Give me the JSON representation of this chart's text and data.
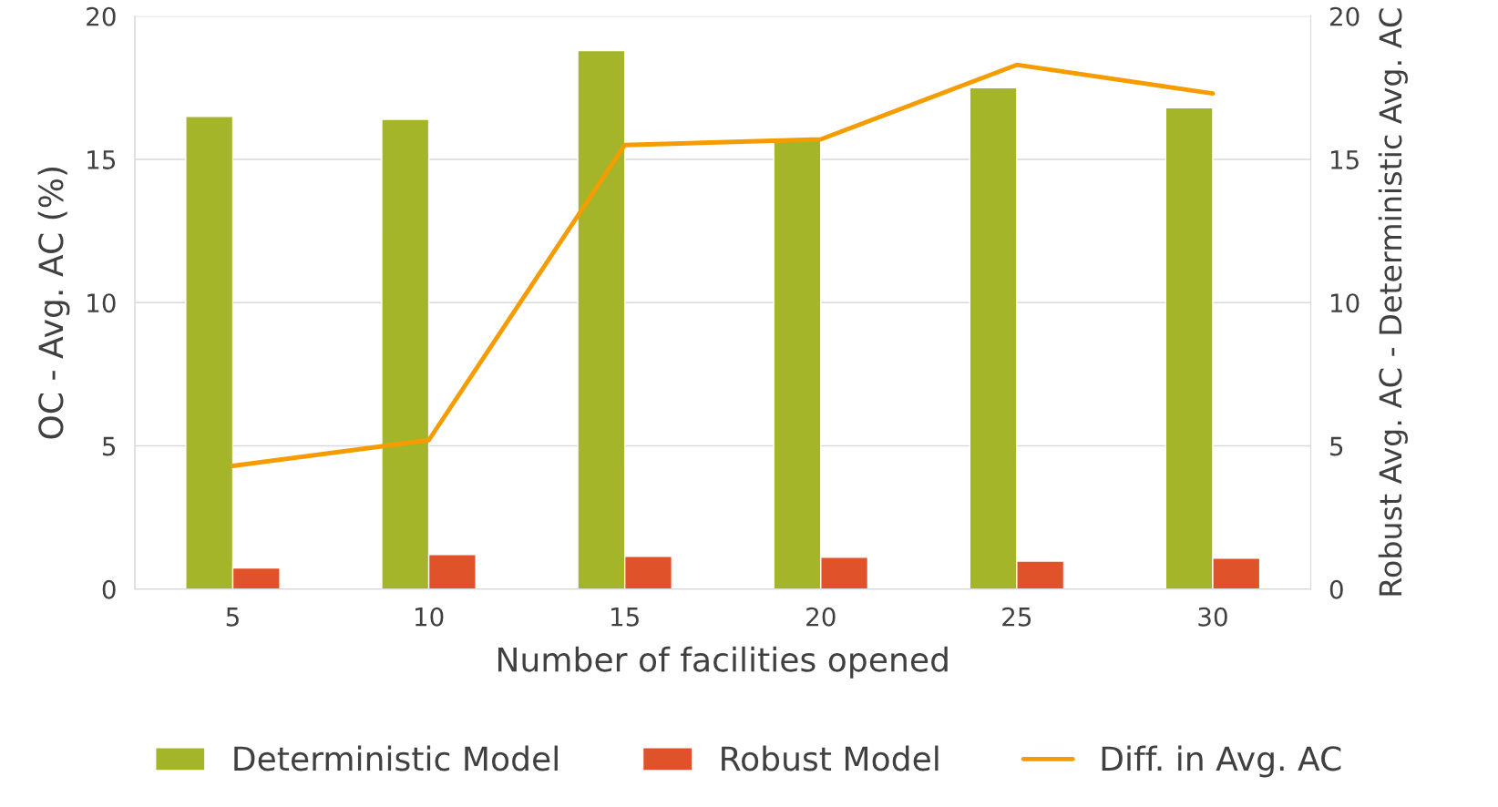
{
  "chart_data": {
    "type": "bar",
    "xlabel": "Number of facilities opened",
    "ylabel": "OC - Avg. AC (%)",
    "y2label": "Robust Avg. AC - Deterministic Avg. AC",
    "categories": [
      "5",
      "10",
      "15",
      "20",
      "25",
      "30"
    ],
    "series": [
      {
        "name": "Deterministic Model",
        "color": "#a5b52a",
        "values": [
          16.5,
          16.4,
          18.8,
          15.7,
          17.5,
          16.8
        ]
      },
      {
        "name": "Robust Model",
        "color": "#e0522a",
        "values": [
          0.74,
          1.21,
          1.14,
          1.11,
          0.98,
          1.08
        ]
      },
      {
        "name": "Diff. in Avg. AC",
        "type": "line",
        "axis": "y2",
        "color": "#f59d00",
        "values": [
          4.3,
          5.2,
          15.5,
          15.7,
          18.3,
          17.3
        ]
      }
    ],
    "ylim": [
      0,
      20
    ],
    "yticks": [
      0,
      5,
      10,
      15,
      20
    ],
    "y2lim": [
      0,
      20
    ],
    "y2ticks": [
      0,
      5,
      10,
      15,
      20
    ],
    "grid": "y",
    "legend": "bottom",
    "marker": "none",
    "line_style": "solid"
  }
}
